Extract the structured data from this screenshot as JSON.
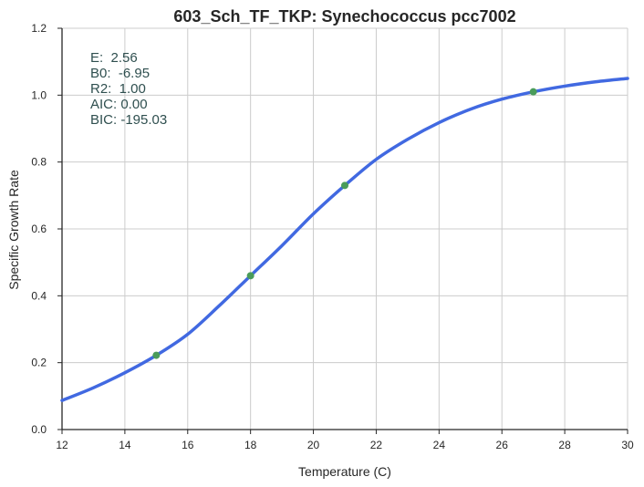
{
  "chart_data": {
    "type": "line",
    "title": "603_Sch_TF_TKP: Synechococcus pcc7002",
    "xlabel": "Temperature (C)",
    "ylabel": "Specific Growth Rate",
    "xlim": [
      12,
      30
    ],
    "ylim": [
      0.0,
      1.2
    ],
    "xticks": [
      "12",
      "14",
      "16",
      "18",
      "20",
      "22",
      "24",
      "26",
      "28",
      "30"
    ],
    "yticks": [
      "0.0",
      "0.2",
      "0.4",
      "0.6",
      "0.8",
      "1.0",
      "1.2"
    ],
    "grid": true,
    "series": [
      {
        "type": "line",
        "color": "#4169e1",
        "x": [
          12,
          13,
          14,
          15,
          16,
          17,
          18,
          19,
          20,
          21,
          22,
          23,
          24,
          25,
          26,
          27,
          28,
          29,
          30
        ],
        "y": [
          0.087,
          0.125,
          0.17,
          0.222,
          0.285,
          0.37,
          0.46,
          0.55,
          0.645,
          0.73,
          0.808,
          0.868,
          0.918,
          0.958,
          0.988,
          1.01,
          1.027,
          1.04,
          1.05
        ]
      },
      {
        "type": "scatter",
        "color": "#4a9c5a",
        "x": [
          15,
          18,
          21,
          27
        ],
        "y": [
          0.222,
          0.46,
          0.73,
          1.01
        ]
      }
    ],
    "annotations": [
      "E:  2.56",
      "B0:  -6.95",
      "R2:  1.00",
      "AIC: 0.00",
      "BIC: -195.03"
    ]
  }
}
